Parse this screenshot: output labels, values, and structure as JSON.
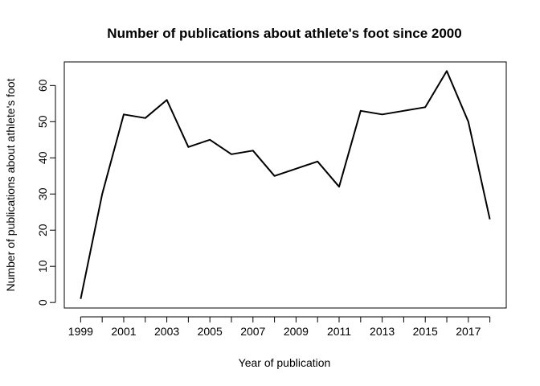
{
  "chart_data": {
    "type": "line",
    "title": "Number of publications about athlete's foot since 2000",
    "xlabel": "Year of publication",
    "ylabel": "Number of publications about athlete's foot",
    "x": [
      1999,
      2000,
      2001,
      2002,
      2003,
      2004,
      2005,
      2006,
      2007,
      2008,
      2009,
      2010,
      2011,
      2012,
      2013,
      2014,
      2015,
      2016,
      2017,
      2018
    ],
    "series": [
      {
        "values": [
          1,
          30,
          52,
          51,
          56,
          43,
          45,
          41,
          42,
          35,
          37,
          39,
          32,
          53,
          52,
          53,
          54,
          64,
          50,
          23
        ]
      }
    ],
    "xticks": [
      "1999",
      "2001",
      "2003",
      "2005",
      "2007",
      "2009",
      "2011",
      "2013",
      "2015",
      "2017"
    ],
    "yticks": [
      "0",
      "10",
      "20",
      "30",
      "40",
      "50",
      "60"
    ],
    "xlim": [
      1998.24,
      2018.76
    ],
    "ylim": [
      -1.52,
      66.52
    ],
    "grid": false,
    "line_color": "#000000"
  }
}
